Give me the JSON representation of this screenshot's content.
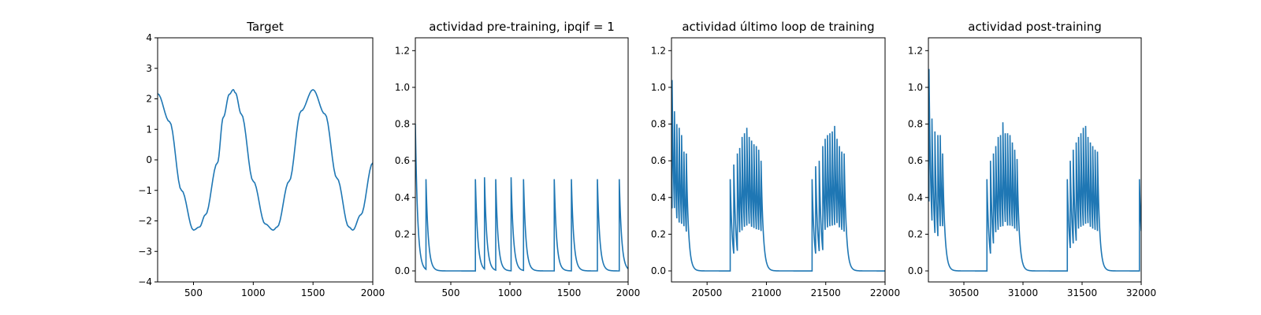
{
  "figure": {
    "background": "#ffffff"
  },
  "chart_data": [
    {
      "type": "line",
      "title": "Target",
      "xlim": [
        200,
        2000
      ],
      "ylim": [
        -4,
        4
      ],
      "x_ticks": [
        500,
        1000,
        1500,
        2000
      ],
      "y_ticks": [
        -4,
        -3,
        -2,
        -1,
        0,
        1,
        2,
        3,
        4
      ],
      "x_tick_labels": [
        "500",
        "1000",
        "1500",
        "2000"
      ],
      "y_tick_labels": [
        "−4",
        "−3",
        "−2",
        "−1",
        "0",
        "1",
        "2",
        "3",
        "4"
      ],
      "line_color": "#1f77b4",
      "grid": false,
      "series": [
        {
          "x": [
            200,
            300,
            400,
            500,
            550,
            600,
            700,
            750,
            800,
            833,
            850,
            900,
            1000,
            1100,
            1167,
            1200,
            1300,
            1400,
            1500,
            1600,
            1700,
            1800,
            1833,
            1900,
            2000
          ],
          "y": [
            2.17,
            1.25,
            -1.0,
            -2.3,
            -2.2,
            -1.8,
            -0.1,
            1.4,
            2.15,
            2.3,
            2.2,
            1.5,
            -0.7,
            -2.1,
            -2.3,
            -2.2,
            -0.7,
            1.6,
            2.3,
            1.5,
            -0.6,
            -2.2,
            -2.3,
            -1.8,
            -0.1
          ]
        }
      ]
    },
    {
      "type": "line",
      "title": "actividad pre-training, ipqif = 1",
      "xlim": [
        200,
        2000
      ],
      "ylim": [
        -0.06,
        1.27
      ],
      "x_ticks": [
        500,
        1000,
        1500,
        2000
      ],
      "y_ticks": [
        0.0,
        0.2,
        0.4,
        0.6,
        0.8,
        1.0,
        1.2
      ],
      "x_tick_labels": [
        "500",
        "1000",
        "1500",
        "2000"
      ],
      "y_tick_labels": [
        "0.0",
        "0.2",
        "0.4",
        "0.6",
        "0.8",
        "1.0",
        "1.2"
      ],
      "line_color": "#1f77b4",
      "grid": false,
      "series": [
        {
          "start_value": 0.8,
          "decay_tau": 20,
          "spikes": [
            [
              290,
              0.5
            ],
            [
              708,
              0.5
            ],
            [
              785,
              0.51
            ],
            [
              880,
              0.5
            ],
            [
              1010,
              0.51
            ],
            [
              1115,
              0.5
            ],
            [
              1375,
              0.5
            ],
            [
              1520,
              0.5
            ],
            [
              1740,
              0.5
            ],
            [
              1925,
              0.5
            ]
          ]
        }
      ]
    },
    {
      "type": "line",
      "title": "actividad último loop de training",
      "xlim": [
        20200,
        22000
      ],
      "ylim": [
        -0.06,
        1.27
      ],
      "x_ticks": [
        20500,
        21000,
        21500,
        22000
      ],
      "y_ticks": [
        0.0,
        0.2,
        0.4,
        0.6,
        0.8,
        1.0,
        1.2
      ],
      "x_tick_labels": [
        "20500",
        "21000",
        "21500",
        "22000"
      ],
      "y_tick_labels": [
        "0.0",
        "0.2",
        "0.4",
        "0.6",
        "0.8",
        "1.0",
        "1.2"
      ],
      "line_color": "#1f77b4",
      "grid": false,
      "series": [
        {
          "start_value": 0.45,
          "decay_tau": 18,
          "spikes": [
            [
              20205,
              1.04
            ],
            [
              20225,
              0.87
            ],
            [
              20245,
              0.8
            ],
            [
              20265,
              0.78
            ],
            [
              20285,
              0.74
            ],
            [
              20305,
              0.65
            ],
            [
              20325,
              0.64
            ],
            [
              20695,
              0.5
            ],
            [
              20725,
              0.58
            ],
            [
              20755,
              0.64
            ],
            [
              20775,
              0.67
            ],
            [
              20795,
              0.73
            ],
            [
              20815,
              0.75
            ],
            [
              20835,
              0.78
            ],
            [
              20855,
              0.73
            ],
            [
              20875,
              0.71
            ],
            [
              20895,
              0.69
            ],
            [
              20915,
              0.68
            ],
            [
              20935,
              0.66
            ],
            [
              20955,
              0.6
            ],
            [
              21385,
              0.5
            ],
            [
              21415,
              0.57
            ],
            [
              21445,
              0.6
            ],
            [
              21475,
              0.68
            ],
            [
              21495,
              0.72
            ],
            [
              21515,
              0.74
            ],
            [
              21535,
              0.75
            ],
            [
              21555,
              0.76
            ],
            [
              21575,
              0.79
            ],
            [
              21595,
              0.72
            ],
            [
              21615,
              0.68
            ],
            [
              21635,
              0.65
            ],
            [
              21655,
              0.64
            ]
          ]
        }
      ]
    },
    {
      "type": "line",
      "title": "actividad post-training",
      "xlim": [
        30200,
        32000
      ],
      "ylim": [
        -0.06,
        1.27
      ],
      "x_ticks": [
        30500,
        31000,
        31500,
        32000
      ],
      "y_ticks": [
        0.0,
        0.2,
        0.4,
        0.6,
        0.8,
        1.0,
        1.2
      ],
      "x_tick_labels": [
        "30500",
        "31000",
        "31500",
        "32000"
      ],
      "y_tick_labels": [
        "0.0",
        "0.2",
        "0.4",
        "0.6",
        "0.8",
        "1.0",
        "1.2"
      ],
      "line_color": "#1f77b4",
      "grid": false,
      "series": [
        {
          "start_value": 0.5,
          "decay_tau": 18,
          "spikes": [
            [
              30205,
              1.1
            ],
            [
              30230,
              0.83
            ],
            [
              30255,
              0.76
            ],
            [
              30280,
              0.74
            ],
            [
              30300,
              0.74
            ],
            [
              30320,
              0.64
            ],
            [
              30695,
              0.5
            ],
            [
              30725,
              0.6
            ],
            [
              30750,
              0.64
            ],
            [
              30770,
              0.68
            ],
            [
              30790,
              0.73
            ],
            [
              30810,
              0.74
            ],
            [
              30830,
              0.81
            ],
            [
              30850,
              0.75
            ],
            [
              30870,
              0.75
            ],
            [
              30890,
              0.74
            ],
            [
              30910,
              0.7
            ],
            [
              30930,
              0.66
            ],
            [
              30950,
              0.61
            ],
            [
              31375,
              0.5
            ],
            [
              31400,
              0.6
            ],
            [
              31425,
              0.66
            ],
            [
              31450,
              0.7
            ],
            [
              31470,
              0.73
            ],
            [
              31490,
              0.75
            ],
            [
              31510,
              0.78
            ],
            [
              31530,
              0.79
            ],
            [
              31550,
              0.73
            ],
            [
              31570,
              0.7
            ],
            [
              31590,
              0.68
            ],
            [
              31610,
              0.66
            ],
            [
              31630,
              0.65
            ],
            [
              31985,
              0.5
            ]
          ]
        }
      ]
    }
  ]
}
